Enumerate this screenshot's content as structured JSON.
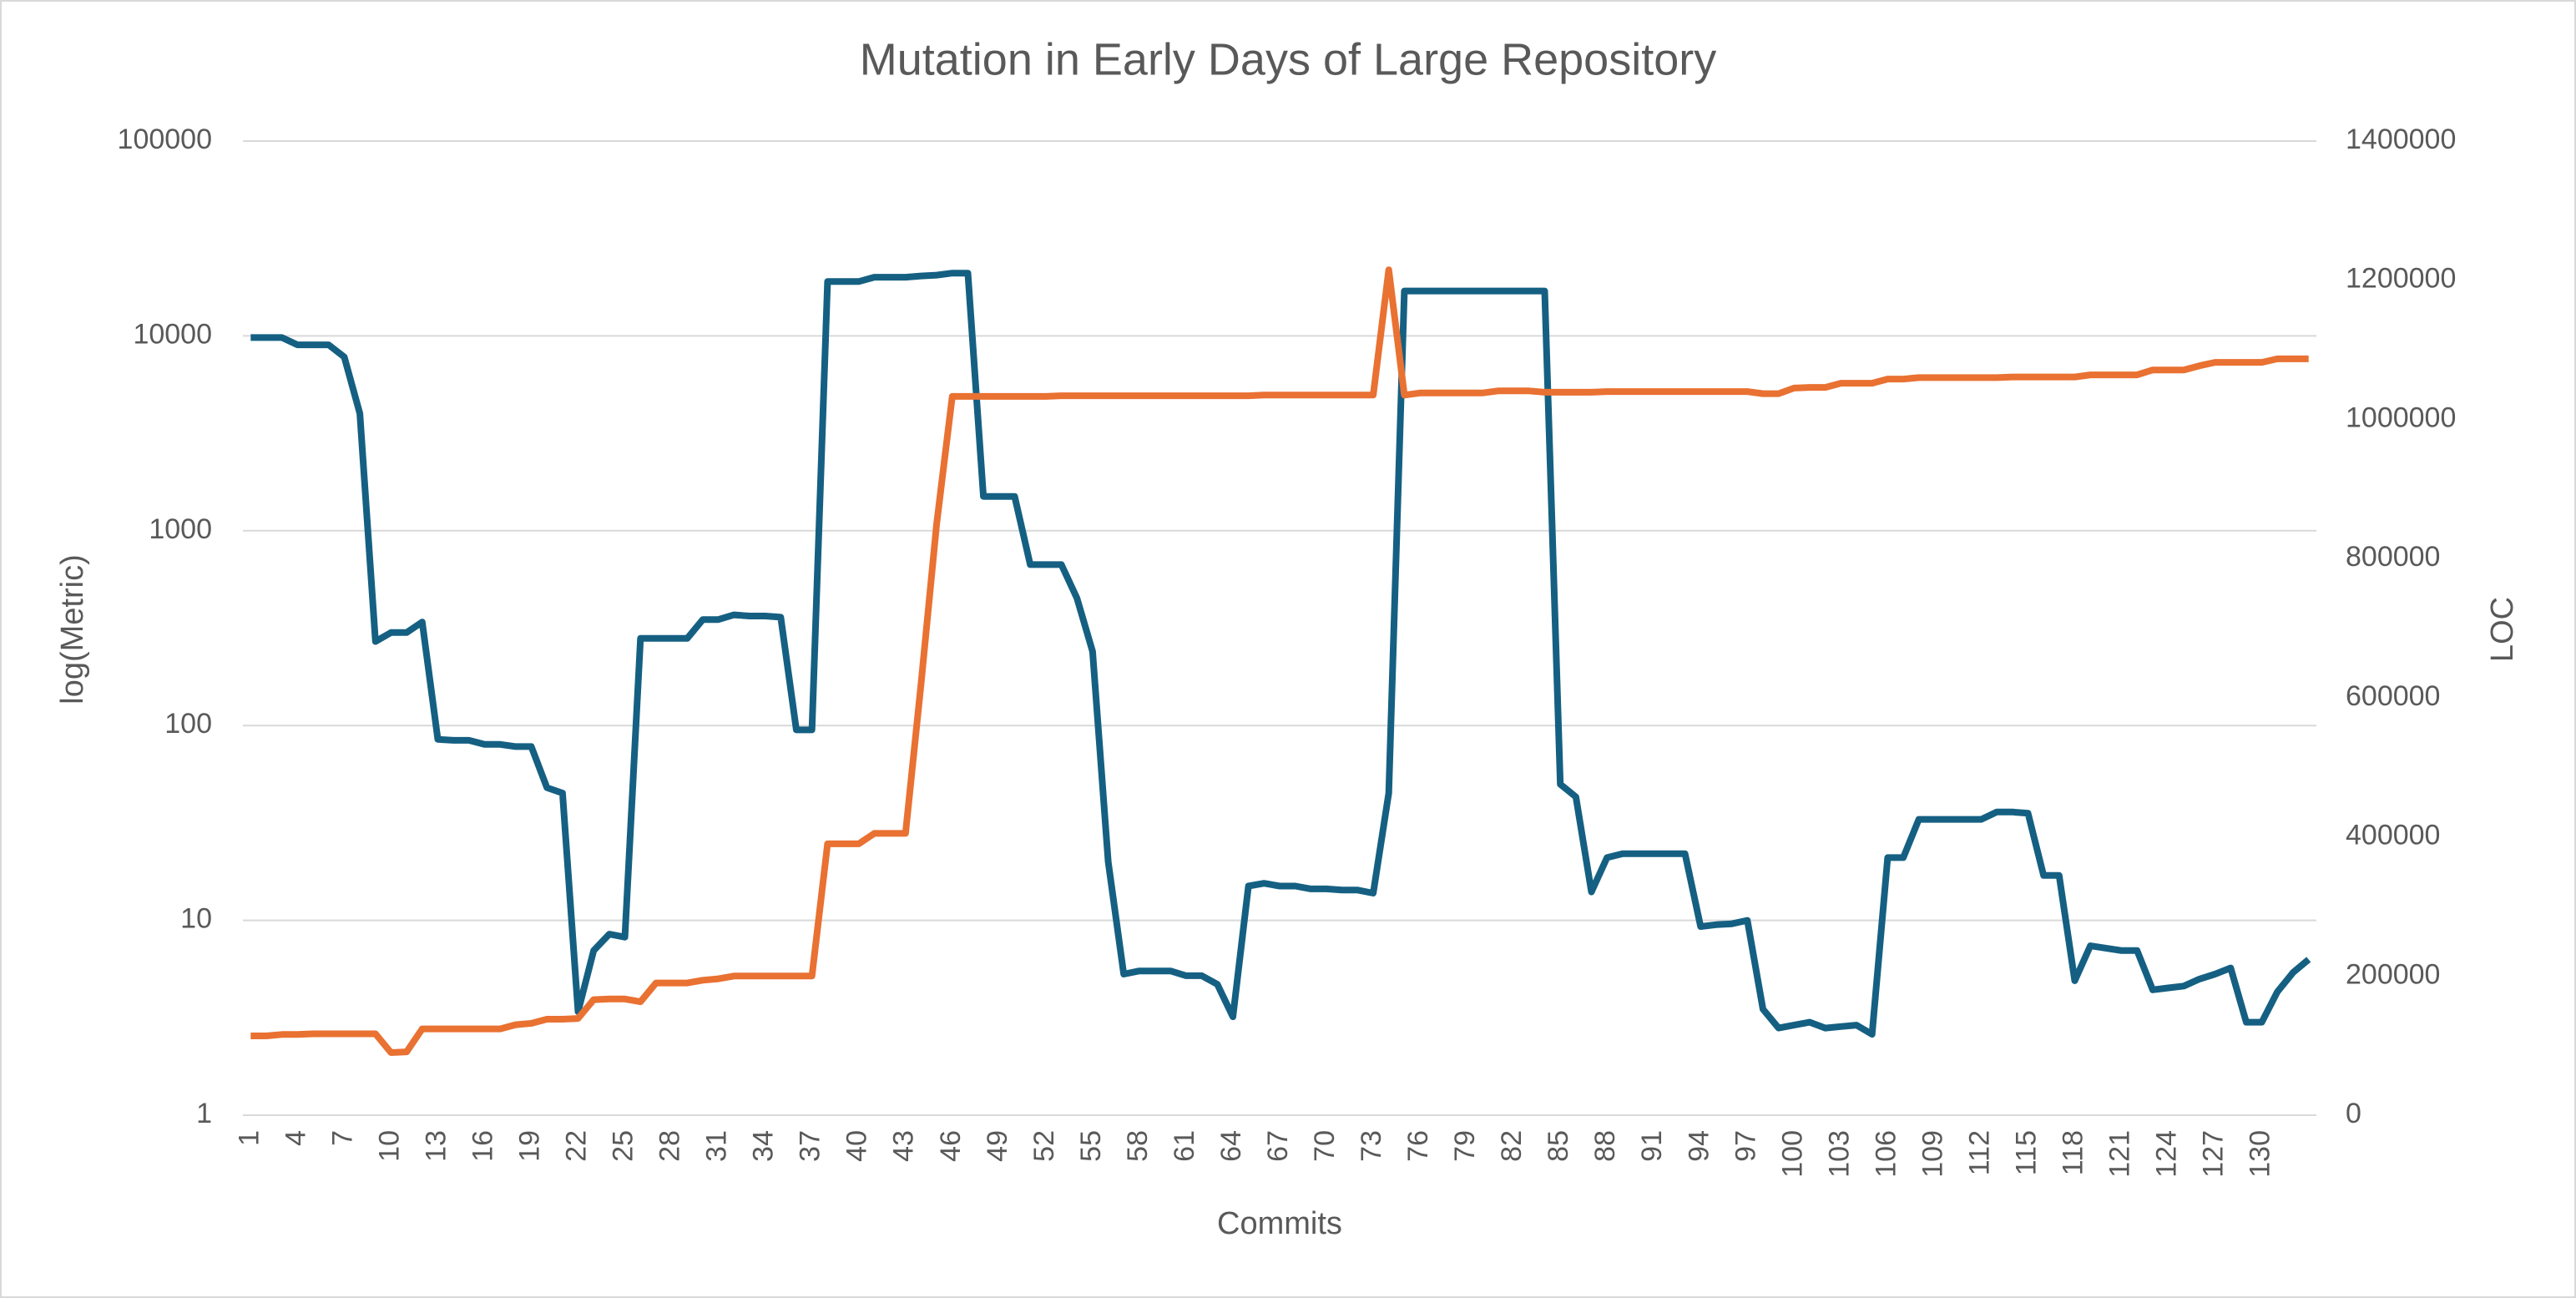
{
  "chart_data": {
    "type": "line",
    "title": "Mutation in Early Days of Large Repository",
    "xlabel": "Commits",
    "ylabel": "log(Metric)",
    "y2label": "LOC",
    "categories": [
      1,
      null,
      null,
      4,
      null,
      null,
      7,
      null,
      null,
      10,
      null,
      null,
      13,
      null,
      null,
      16,
      null,
      null,
      19,
      null,
      null,
      22,
      null,
      null,
      25,
      null,
      null,
      28,
      null,
      null,
      31,
      null,
      null,
      34,
      null,
      null,
      37,
      null,
      null,
      40,
      null,
      null,
      43,
      null,
      null,
      46,
      null,
      null,
      49,
      null,
      null,
      52,
      null,
      null,
      55,
      null,
      null,
      58,
      null,
      null,
      61,
      null,
      null,
      64,
      null,
      null,
      67,
      null,
      null,
      70,
      null,
      null,
      73,
      null,
      null,
      76,
      null,
      null,
      79,
      null,
      null,
      82,
      null,
      null,
      85,
      null,
      null,
      88,
      null,
      null,
      91,
      null,
      null,
      94,
      null,
      null,
      97,
      null,
      null,
      100,
      null,
      null,
      103,
      null,
      null,
      106,
      null,
      null,
      109,
      null,
      null,
      112,
      null,
      null,
      115,
      null,
      null,
      118,
      null,
      null,
      121,
      null,
      null,
      124,
      null,
      null,
      127,
      null,
      null,
      130,
      null,
      null,
      null
    ],
    "series": [
      {
        "color": "#156082",
        "values": [
          9800,
          9800,
          9800,
          9000,
          9000,
          9000,
          7800,
          4000,
          270,
          300,
          300,
          340,
          85,
          84,
          84,
          80,
          80,
          78,
          78,
          48,
          45,
          3.4,
          7,
          8.5,
          8.2,
          280,
          280,
          280,
          280,
          350,
          350,
          370,
          365,
          365,
          360,
          95,
          95,
          19000,
          19000,
          19000,
          20000,
          20000,
          20000,
          20300,
          20500,
          21000,
          21000,
          1500,
          1500,
          1500,
          670,
          670,
          670,
          450,
          240,
          20,
          5.3,
          5.5,
          5.5,
          5.5,
          5.2,
          5.2,
          4.7,
          3.2,
          15,
          15.5,
          15,
          15,
          14.5,
          14.5,
          14.3,
          14.3,
          13.8,
          45,
          17000,
          17000,
          17000,
          17000,
          17000,
          17000,
          17000,
          17000,
          17000,
          17000,
          50,
          43,
          14,
          21,
          22,
          22,
          22,
          22,
          22,
          9.3,
          9.5,
          9.6,
          10,
          3.5,
          2.8,
          2.9,
          3,
          2.8,
          2.85,
          2.9,
          2.6,
          21,
          21,
          33,
          33,
          33,
          33,
          33,
          36,
          36,
          35.5,
          17,
          17,
          4.9,
          7.4,
          7.2,
          7,
          7,
          4.4,
          4.5,
          4.6,
          5,
          5.3,
          5.7,
          3,
          3,
          4.3,
          5.4,
          6.3
        ]
      },
      {
        "color": "#e97132",
        "axis": "y2",
        "values": [
          114000,
          114000,
          116000,
          116000,
          117000,
          117000,
          117000,
          117000,
          117000,
          90000,
          91000,
          124000,
          124000,
          124000,
          124000,
          124000,
          124000,
          130000,
          132000,
          138000,
          138000,
          139000,
          166000,
          167000,
          167000,
          163000,
          190000,
          190000,
          190000,
          194000,
          196000,
          200000,
          200000,
          200000,
          200000,
          200000,
          200000,
          390000,
          390000,
          390000,
          405000,
          405000,
          405000,
          620000,
          850000,
          1033000,
          1033000,
          1033000,
          1033000,
          1033000,
          1033000,
          1033000,
          1034000,
          1034000,
          1034000,
          1034000,
          1034000,
          1034000,
          1034000,
          1034000,
          1034000,
          1034000,
          1034000,
          1034000,
          1034000,
          1035000,
          1035000,
          1035000,
          1035000,
          1035000,
          1035000,
          1035000,
          1035000,
          1215000,
          1035000,
          1038000,
          1038000,
          1038000,
          1038000,
          1038000,
          1041000,
          1041000,
          1041000,
          1039000,
          1039000,
          1039000,
          1039000,
          1040000,
          1040000,
          1040000,
          1040000,
          1040000,
          1040000,
          1040000,
          1040000,
          1040000,
          1040000,
          1037000,
          1037000,
          1045000,
          1046000,
          1046000,
          1052000,
          1052000,
          1052000,
          1058000,
          1058000,
          1060000,
          1060000,
          1060000,
          1060000,
          1060000,
          1060000,
          1061000,
          1061000,
          1061000,
          1061000,
          1061000,
          1064000,
          1064000,
          1064000,
          1064000,
          1071000,
          1071000,
          1071000,
          1077000,
          1082000,
          1082000,
          1082000,
          1082000,
          1087000,
          1087000,
          1087000
        ]
      }
    ],
    "log": true,
    "grid": true,
    "ylim": [
      1,
      100000
    ],
    "yticks": [
      1,
      10,
      100,
      1000,
      10000,
      100000
    ],
    "y2lim": [
      0,
      1400000
    ],
    "y2ticks": [
      0,
      200000,
      400000,
      600000,
      800000,
      1000000,
      1200000,
      1400000
    ]
  }
}
